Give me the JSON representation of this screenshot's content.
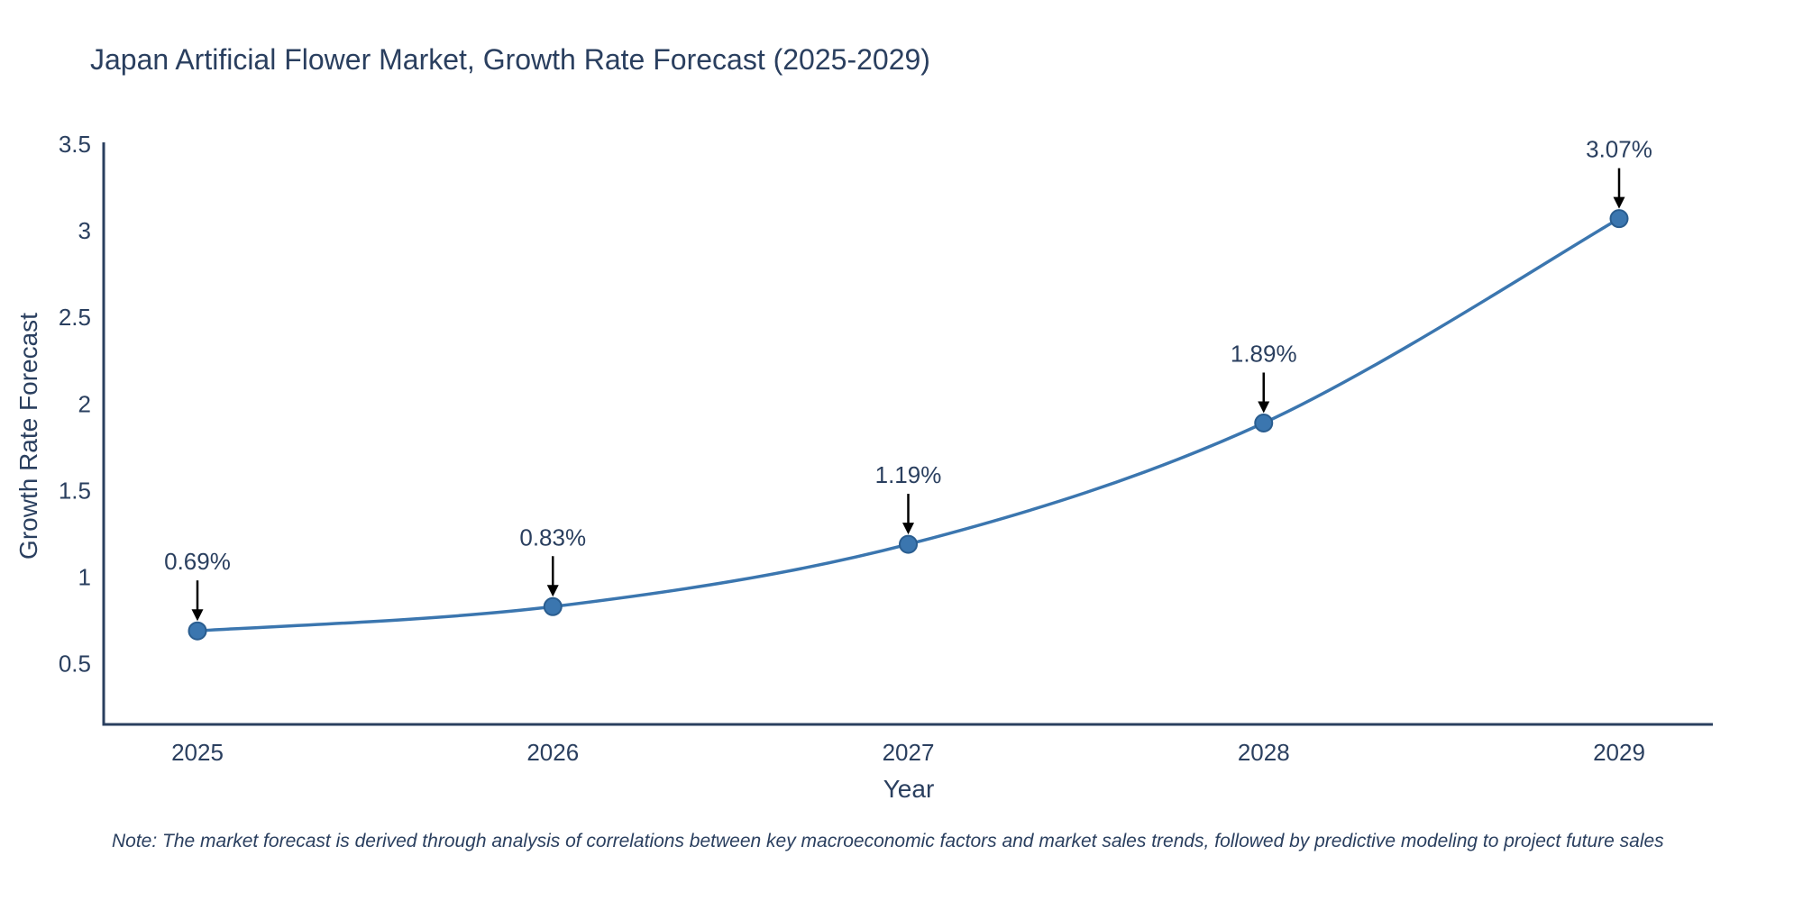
{
  "title": "Japan Artificial Flower Market, Growth Rate Forecast (2025-2029)",
  "note": "Note: The market forecast is derived through analysis of correlations between key macroeconomic factors and market sales trends, followed by predictive modeling to project future sales",
  "chart_data": {
    "type": "line",
    "title": "Japan Artificial Flower Market, Growth Rate Forecast (2025-2029)",
    "xlabel": "Year",
    "ylabel": "Growth Rate Forecast",
    "categories": [
      "2025",
      "2026",
      "2027",
      "2028",
      "2029"
    ],
    "values": [
      0.69,
      0.83,
      1.19,
      1.89,
      3.07
    ],
    "point_labels": [
      "0.69%",
      "0.83%",
      "1.19%",
      "1.89%",
      "3.07%"
    ],
    "y_ticks": [
      0.5,
      1,
      1.5,
      2,
      2.5,
      3,
      3.5
    ],
    "ylim": [
      0.15,
      3.5
    ],
    "grid": false,
    "legend": "none",
    "line_shape": "spline",
    "line_color": "#3b76af",
    "marker_color": "#3b76af",
    "marker_edge_color": "#2a5d8f",
    "axis_color": "#2a3f5f",
    "text_color": "#2a3f5f",
    "annotation_arrow_color": "#000000"
  }
}
